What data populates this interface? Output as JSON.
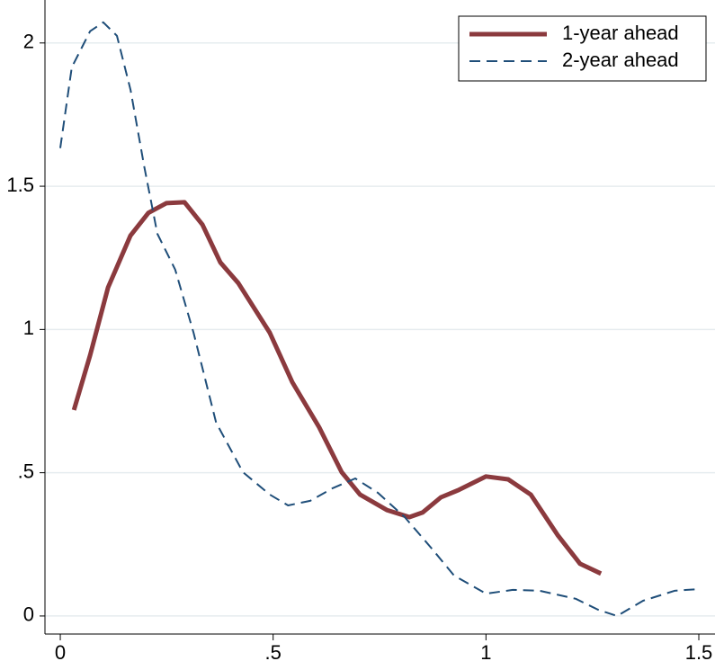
{
  "chart_data": {
    "type": "line",
    "series": [
      {
        "name": "1-year ahead",
        "color": "#8b3a3e",
        "style": "solid",
        "x": [
          0.032,
          0.07,
          0.112,
          0.165,
          0.207,
          0.249,
          0.292,
          0.334,
          0.376,
          0.418,
          0.492,
          0.545,
          0.608,
          0.661,
          0.704,
          0.767,
          0.82,
          0.851,
          0.894,
          0.936,
          1.0,
          1.052,
          1.105,
          1.168,
          1.221,
          1.27
        ],
        "values": [
          0.719,
          0.91,
          1.146,
          1.328,
          1.407,
          1.441,
          1.444,
          1.366,
          1.234,
          1.162,
          0.989,
          0.816,
          0.659,
          0.502,
          0.424,
          0.37,
          0.345,
          0.361,
          0.414,
          0.44,
          0.487,
          0.477,
          0.424,
          0.283,
          0.182,
          0.148
        ]
      },
      {
        "name": "2-year ahead",
        "color": "#1f4e79",
        "style": "dashed",
        "x": [
          0,
          0.027,
          0.07,
          0.101,
          0.133,
          0.165,
          0.197,
          0.228,
          0.27,
          0.313,
          0.366,
          0.429,
          0.492,
          0.535,
          0.587,
          0.64,
          0.693,
          0.746,
          0.809,
          0.873,
          0.925,
          1.0,
          1.063,
          1.126,
          1.211,
          1.263,
          1.308,
          1.369,
          1.443,
          1.5
        ],
        "values": [
          1.633,
          1.915,
          2.041,
          2.072,
          2.025,
          1.837,
          1.57,
          1.334,
          1.209,
          0.989,
          0.675,
          0.502,
          0.424,
          0.386,
          0.402,
          0.446,
          0.48,
          0.43,
          0.345,
          0.235,
          0.141,
          0.078,
          0.091,
          0.088,
          0.06,
          0.022,
          0,
          0.053,
          0.088,
          0.094
        ]
      }
    ],
    "xlim": [
      -0.036,
      1.538
    ],
    "ylim": [
      -0.063,
      2.15
    ],
    "xticks": [
      0,
      {
        "value": 0.5,
        "label": ".5"
      },
      1,
      1.5
    ],
    "yticks": [
      0,
      {
        "value": 0.5,
        "label": ".5"
      },
      1,
      1.5,
      2
    ],
    "grid": true,
    "legend": "top-right"
  }
}
